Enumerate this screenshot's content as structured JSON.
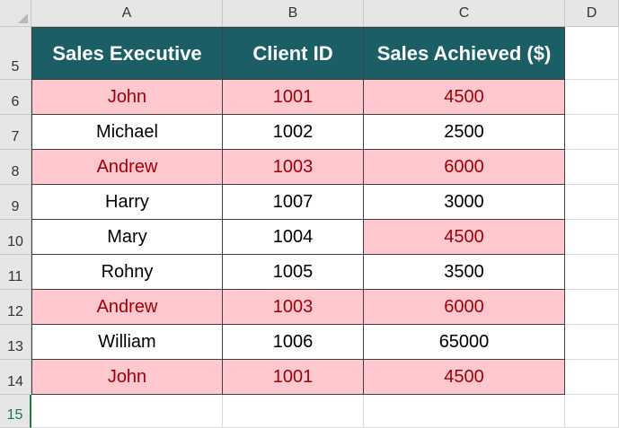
{
  "sheet": {
    "columns": [
      "A",
      "B",
      "C",
      "D"
    ],
    "rows": [
      "5",
      "6",
      "7",
      "8",
      "9",
      "10",
      "11",
      "12",
      "13",
      "14",
      "15"
    ],
    "selected_row": "15",
    "colors": {
      "header_fill": "#1b5e66",
      "highlight_fill": "#ffc7ce",
      "highlight_text": "#9c0006"
    }
  },
  "table": {
    "headers": [
      "Sales Executive",
      "Client ID",
      "Sales Achieved ($)"
    ],
    "rows": [
      {
        "name": "John",
        "id": "1001",
        "sales": "4500"
      },
      {
        "name": "Michael",
        "id": "1002",
        "sales": "2500"
      },
      {
        "name": "Andrew",
        "id": "1003",
        "sales": "6000"
      },
      {
        "name": "Harry",
        "id": "1007",
        "sales": "3000"
      },
      {
        "name": "Mary",
        "id": "1004",
        "sales": "4500"
      },
      {
        "name": "Rohny",
        "id": "1005",
        "sales": "3500"
      },
      {
        "name": "Andrew",
        "id": "1003",
        "sales": "6000"
      },
      {
        "name": "William",
        "id": "1006",
        "sales": "65000"
      },
      {
        "name": "John",
        "id": "1001",
        "sales": "4500"
      }
    ]
  }
}
